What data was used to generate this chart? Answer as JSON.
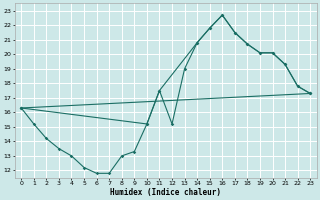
{
  "xlabel": "Humidex (Indice chaleur)",
  "bg_color": "#cde8e8",
  "grid_color": "#ffffff",
  "line_color": "#1a6e64",
  "xlim": [
    -0.5,
    23.5
  ],
  "ylim": [
    11.5,
    23.5
  ],
  "xticks": [
    0,
    1,
    2,
    3,
    4,
    5,
    6,
    7,
    8,
    9,
    10,
    11,
    12,
    13,
    14,
    15,
    16,
    17,
    18,
    19,
    20,
    21,
    22,
    23
  ],
  "yticks": [
    12,
    13,
    14,
    15,
    16,
    17,
    18,
    19,
    20,
    21,
    22,
    23
  ],
  "curve1_x": [
    0,
    1,
    2,
    3,
    4,
    5,
    6,
    7,
    8,
    9,
    10,
    11,
    12,
    13,
    14,
    15,
    16,
    17,
    18,
    19,
    20,
    21,
    22,
    23
  ],
  "curve1_y": [
    16.3,
    15.2,
    14.2,
    13.5,
    13.0,
    12.2,
    11.8,
    11.8,
    13.0,
    13.3,
    15.2,
    17.5,
    15.2,
    19.0,
    20.8,
    21.8,
    22.7,
    21.5,
    20.7,
    20.1,
    20.1,
    19.3,
    17.8,
    17.3
  ],
  "curve2_x": [
    0,
    23
  ],
  "curve2_y": [
    16.3,
    17.3
  ],
  "curve3_x": [
    0,
    10,
    11,
    14,
    15,
    16,
    17,
    18,
    19,
    20,
    21,
    22,
    23
  ],
  "curve3_y": [
    16.3,
    15.2,
    17.5,
    20.8,
    21.8,
    22.7,
    21.5,
    20.7,
    20.1,
    20.1,
    19.3,
    17.8,
    17.3
  ]
}
